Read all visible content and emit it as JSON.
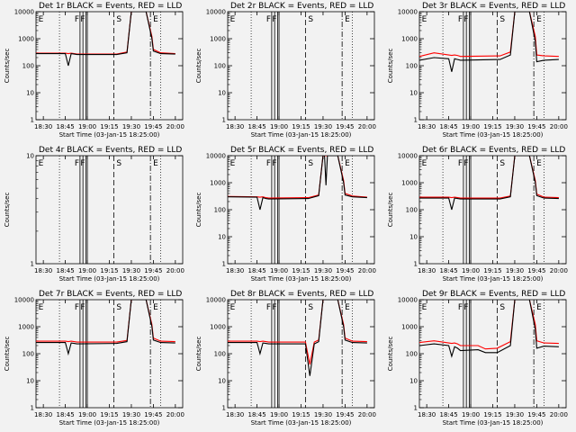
{
  "figure": {
    "xlabel": "Start Time (03-Jan-15 18:25:00)",
    "ylabel": "Counts/sec",
    "x_ticks": [
      "18:30",
      "18:45",
      "19:00",
      "19:15",
      "19:30",
      "19:45",
      "20:00"
    ],
    "y_ticks_log": [
      "1",
      "10",
      "100",
      "1000",
      "10000"
    ],
    "markers": [
      "E",
      "F",
      "F",
      "S",
      "E"
    ],
    "colors": {
      "events": "#000000",
      "lld": "#ff0000",
      "background": "#f2f2f2"
    }
  },
  "chart_data": [
    {
      "type": "line",
      "title": "Det 1r BLACK = Events, RED = LLD",
      "yscale": "log",
      "ylim": [
        1,
        10000
      ],
      "xlim": [
        "18:25",
        "20:05"
      ],
      "series": [
        {
          "name": "Events",
          "x": [
            "18:25",
            "18:45",
            "18:47",
            "18:49",
            "18:51",
            "18:53",
            "19:20",
            "19:27",
            "19:30",
            "19:33",
            "19:40",
            "19:44",
            "19:45",
            "19:50",
            "20:00"
          ],
          "y": [
            280,
            280,
            100,
            280,
            270,
            260,
            260,
            300,
            10000,
            10000,
            10000,
            1000,
            350,
            280,
            270
          ]
        },
        {
          "name": "LLD",
          "x": [
            "18:25",
            "18:45",
            "18:47",
            "18:49",
            "18:51",
            "18:53",
            "19:20",
            "19:27",
            "19:30",
            "19:33",
            "19:40",
            "19:44",
            "19:45",
            "19:50",
            "20:00"
          ],
          "y": [
            290,
            290,
            280,
            290,
            280,
            270,
            270,
            320,
            10000,
            10000,
            10000,
            1200,
            400,
            300,
            280
          ]
        }
      ]
    },
    {
      "type": "line",
      "title": "Det 2r BLACK = Events, RED = LLD",
      "yscale": "log",
      "ylim": [
        1,
        10000
      ],
      "xlim": [
        "18:25",
        "20:05"
      ],
      "series": []
    },
    {
      "type": "line",
      "title": "Det 3r BLACK = Events, RED = LLD",
      "yscale": "log",
      "ylim": [
        1,
        10000
      ],
      "xlim": [
        "18:25",
        "20:05"
      ],
      "series": [
        {
          "name": "Events",
          "x": [
            "18:25",
            "18:35",
            "18:45",
            "18:47",
            "18:49",
            "18:51",
            "18:53",
            "19:20",
            "19:27",
            "19:30",
            "19:33",
            "19:40",
            "19:44",
            "19:45",
            "19:50",
            "20:00"
          ],
          "y": [
            160,
            200,
            180,
            60,
            180,
            170,
            160,
            170,
            250,
            10000,
            10000,
            10000,
            800,
            140,
            160,
            170
          ]
        },
        {
          "name": "LLD",
          "x": [
            "18:25",
            "18:35",
            "18:45",
            "18:47",
            "18:49",
            "18:51",
            "18:53",
            "19:20",
            "19:27",
            "19:30",
            "19:33",
            "19:40",
            "19:44",
            "19:45",
            "19:50",
            "20:00"
          ],
          "y": [
            220,
            300,
            250,
            240,
            250,
            240,
            220,
            230,
            320,
            10000,
            10000,
            10000,
            1200,
            250,
            230,
            220
          ]
        }
      ]
    },
    {
      "type": "line",
      "title": "Det 4r BLACK = Events, RED = LLD",
      "yscale": "log",
      "ylim": [
        1,
        10
      ],
      "xlim": [
        "18:25",
        "20:05"
      ],
      "series": []
    },
    {
      "type": "line",
      "title": "Det 5r BLACK = Events, RED = LLD",
      "yscale": "log",
      "ylim": [
        1,
        10000
      ],
      "xlim": [
        "18:25",
        "20:05"
      ],
      "series": [
        {
          "name": "Events",
          "x": [
            "18:25",
            "18:45",
            "18:47",
            "18:49",
            "18:51",
            "18:53",
            "19:20",
            "19:27",
            "19:30",
            "19:31",
            "19:32",
            "19:33",
            "19:40",
            "19:44",
            "19:45",
            "19:50",
            "20:00"
          ],
          "y": [
            300,
            290,
            100,
            280,
            260,
            250,
            260,
            330,
            10000,
            10000,
            800,
            10000,
            10000,
            1000,
            350,
            300,
            280
          ]
        },
        {
          "name": "LLD",
          "x": [
            "18:25",
            "18:45",
            "18:47",
            "18:49",
            "18:51",
            "18:53",
            "19:20",
            "19:27",
            "19:30",
            "19:33",
            "19:40",
            "19:44",
            "19:45",
            "19:50",
            "20:00"
          ],
          "y": [
            310,
            300,
            290,
            300,
            280,
            270,
            280,
            350,
            10000,
            10000,
            10000,
            1200,
            400,
            320,
            290
          ]
        }
      ]
    },
    {
      "type": "line",
      "title": "Det 6r BLACK = Events, RED = LLD",
      "yscale": "log",
      "ylim": [
        1,
        10000
      ],
      "xlim": [
        "18:25",
        "20:05"
      ],
      "series": [
        {
          "name": "Events",
          "x": [
            "18:25",
            "18:45",
            "18:47",
            "18:49",
            "18:51",
            "18:53",
            "19:20",
            "19:27",
            "19:30",
            "19:33",
            "19:40",
            "19:44",
            "19:45",
            "19:50",
            "20:00"
          ],
          "y": [
            270,
            270,
            100,
            270,
            260,
            250,
            250,
            300,
            10000,
            10000,
            10000,
            1000,
            330,
            270,
            260
          ]
        },
        {
          "name": "LLD",
          "x": [
            "18:25",
            "18:45",
            "18:47",
            "18:49",
            "18:51",
            "18:53",
            "19:20",
            "19:27",
            "19:30",
            "19:33",
            "19:40",
            "19:44",
            "19:45",
            "19:50",
            "20:00"
          ],
          "y": [
            290,
            290,
            280,
            290,
            280,
            270,
            270,
            320,
            10000,
            10000,
            10000,
            1200,
            380,
            290,
            280
          ]
        }
      ]
    },
    {
      "type": "line",
      "title": "Det 7r BLACK = Events, RED = LLD",
      "yscale": "log",
      "ylim": [
        1,
        10000
      ],
      "xlim": [
        "18:25",
        "20:05"
      ],
      "series": [
        {
          "name": "Events",
          "x": [
            "18:25",
            "18:45",
            "18:47",
            "18:49",
            "18:51",
            "18:53",
            "19:20",
            "19:27",
            "19:30",
            "19:33",
            "19:40",
            "19:44",
            "19:45",
            "19:50",
            "20:00"
          ],
          "y": [
            260,
            260,
            100,
            250,
            240,
            230,
            240,
            280,
            10000,
            10000,
            10000,
            1000,
            320,
            260,
            250
          ]
        },
        {
          "name": "LLD",
          "x": [
            "18:25",
            "18:45",
            "18:47",
            "18:49",
            "18:51",
            "18:53",
            "19:20",
            "19:27",
            "19:30",
            "19:33",
            "19:40",
            "19:44",
            "19:45",
            "19:50",
            "20:00"
          ],
          "y": [
            290,
            290,
            280,
            290,
            280,
            270,
            270,
            310,
            10000,
            10000,
            10000,
            1200,
            380,
            290,
            280
          ]
        }
      ]
    },
    {
      "type": "line",
      "title": "Det 8r BLACK = Events, RED = LLD",
      "yscale": "log",
      "ylim": [
        1,
        10000
      ],
      "xlim": [
        "18:25",
        "20:05"
      ],
      "series": [
        {
          "name": "Events",
          "x": [
            "18:25",
            "18:45",
            "18:47",
            "18:49",
            "18:51",
            "18:53",
            "19:18",
            "19:21",
            "19:24",
            "19:27",
            "19:30",
            "19:33",
            "19:40",
            "19:44",
            "19:45",
            "19:50",
            "20:00"
          ],
          "y": [
            260,
            260,
            100,
            250,
            240,
            230,
            230,
            15,
            230,
            280,
            10000,
            10000,
            10000,
            1000,
            320,
            260,
            250
          ]
        },
        {
          "name": "LLD",
          "x": [
            "18:25",
            "18:45",
            "18:47",
            "18:49",
            "18:51",
            "18:53",
            "19:18",
            "19:21",
            "19:24",
            "19:27",
            "19:30",
            "19:33",
            "19:40",
            "19:44",
            "19:45",
            "19:50",
            "20:00"
          ],
          "y": [
            290,
            290,
            280,
            290,
            280,
            270,
            270,
            40,
            270,
            320,
            10000,
            10000,
            10000,
            1200,
            380,
            290,
            280
          ]
        }
      ]
    },
    {
      "type": "line",
      "title": "Det 9r BLACK = Events, RED = LLD",
      "yscale": "log",
      "ylim": [
        1,
        10000
      ],
      "xlim": [
        "18:25",
        "20:05"
      ],
      "series": [
        {
          "name": "Events",
          "x": [
            "18:25",
            "18:35",
            "18:45",
            "18:47",
            "18:49",
            "18:51",
            "18:53",
            "19:05",
            "19:10",
            "19:18",
            "19:27",
            "19:30",
            "19:33",
            "19:40",
            "19:44",
            "19:45",
            "19:50",
            "20:00"
          ],
          "y": [
            200,
            230,
            200,
            80,
            180,
            160,
            130,
            140,
            110,
            110,
            200,
            10000,
            10000,
            10000,
            800,
            160,
            190,
            180
          ]
        },
        {
          "name": "LLD",
          "x": [
            "18:25",
            "18:35",
            "18:45",
            "18:47",
            "18:49",
            "18:51",
            "18:53",
            "19:05",
            "19:10",
            "19:18",
            "19:27",
            "19:30",
            "19:33",
            "19:40",
            "19:44",
            "19:45",
            "19:50",
            "20:00"
          ],
          "y": [
            260,
            300,
            250,
            240,
            250,
            230,
            200,
            200,
            150,
            160,
            280,
            10000,
            10000,
            10000,
            1200,
            300,
            250,
            240
          ]
        }
      ]
    }
  ]
}
